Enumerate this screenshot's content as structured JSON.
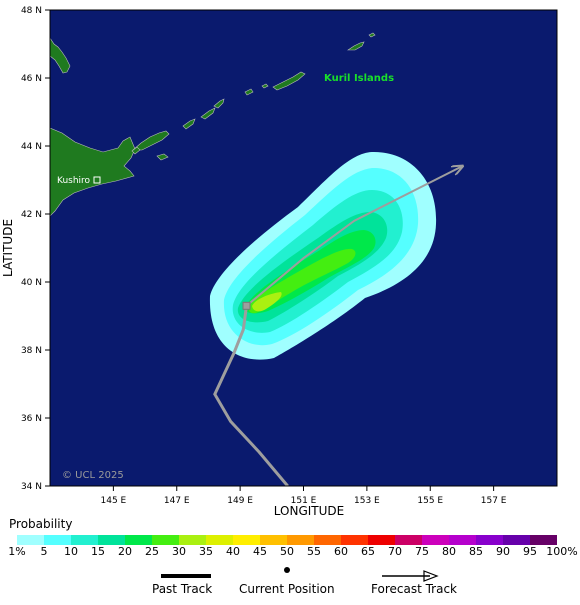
{
  "map": {
    "region_label": "Kuril Islands",
    "city_label": "Kushiro",
    "watermark": "© UCL 2025",
    "xlabel": "LONGITUDE",
    "ylabel": "LATITUDE",
    "x_ticks": [
      "145 E",
      "147 E",
      "149 E",
      "151 E",
      "153 E",
      "155 E",
      "157 E"
    ],
    "y_ticks": [
      "34 N",
      "36 N",
      "38 N",
      "40 N",
      "42 N",
      "44 N",
      "46 N",
      "48 N"
    ],
    "colors": {
      "ocean": "#0a1a6e",
      "land": "#1f7a1f",
      "track": "#9e9e9e",
      "label_green": "#19e02a"
    },
    "past_track": [
      [
        150.5,
        34.0
      ],
      [
        149.6,
        35.0
      ],
      [
        148.7,
        35.9
      ],
      [
        148.2,
        36.7
      ],
      [
        148.5,
        37.3
      ],
      [
        148.8,
        37.9
      ],
      [
        149.1,
        38.6
      ],
      [
        149.2,
        39.3
      ]
    ],
    "current_position": [
      149.2,
      39.3
    ],
    "forecast_track": [
      [
        149.2,
        39.3
      ],
      [
        151.0,
        40.7
      ],
      [
        152.6,
        41.8
      ],
      [
        156.0,
        43.4
      ]
    ]
  },
  "legend": {
    "title": "Probability",
    "labels": [
      "1%",
      "5",
      "10",
      "15",
      "20",
      "25",
      "30",
      "35",
      "40",
      "45",
      "50",
      "55",
      "60",
      "65",
      "70",
      "75",
      "80",
      "85",
      "90",
      "95",
      "100%"
    ],
    "colors": [
      "#a0ffff",
      "#55ffff",
      "#22f0d0",
      "#00e39a",
      "#00e84a",
      "#44ee11",
      "#aaf011",
      "#ddf000",
      "#ffee00",
      "#ffc000",
      "#ff9900",
      "#ff6600",
      "#ff3300",
      "#ee0000",
      "#cc0066",
      "#cc00bb",
      "#b500cc",
      "#8800cc",
      "#6600aa",
      "#660066"
    ],
    "past_track_label": "Past Track",
    "current_position_label": "Current Position",
    "forecast_track_label": "Forecast Track"
  }
}
